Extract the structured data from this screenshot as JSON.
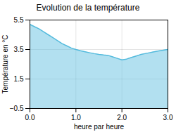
{
  "chart_data": {
    "type": "area",
    "title": "Evolution de la température",
    "xlabel": "heure par heure",
    "ylabel": "Température en °C",
    "x": [
      0,
      0.1,
      0.2,
      0.3,
      0.4,
      0.5,
      0.6,
      0.7,
      0.8,
      0.9,
      1.0,
      1.1,
      1.2,
      1.3,
      1.4,
      1.5,
      1.6,
      1.7,
      1.8,
      1.9,
      2.0,
      2.1,
      2.2,
      2.3,
      2.4,
      2.5,
      2.6,
      2.7,
      2.8,
      2.9,
      3.0
    ],
    "values": [
      5.2,
      5.05,
      4.9,
      4.7,
      4.5,
      4.3,
      4.1,
      3.9,
      3.75,
      3.6,
      3.5,
      3.42,
      3.35,
      3.28,
      3.22,
      3.17,
      3.13,
      3.1,
      3.0,
      2.9,
      2.8,
      2.85,
      2.95,
      3.05,
      3.15,
      3.22,
      3.28,
      3.35,
      3.4,
      3.45,
      3.5
    ],
    "color": "#55bbdd",
    "xlim": [
      0,
      3
    ],
    "ylim": [
      -0.5,
      5.5
    ],
    "xticks": [
      0,
      1,
      2,
      3
    ],
    "yticks": [
      -0.5,
      1.5,
      3.5,
      5.5
    ],
    "grid": true
  }
}
